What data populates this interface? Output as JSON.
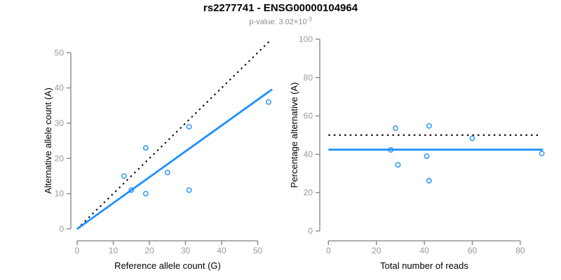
{
  "header": {
    "title": "rs2277741 - ENSG00000104964",
    "subtitle_base": "p-value: 3.02×10",
    "subtitle_exponent": "-3"
  },
  "colors": {
    "accent_blue": "#1E90FF",
    "dotted_black": "#000000",
    "axis_gray": "#808080",
    "tick_label_gray": "#999999",
    "subtitle_gray": "#8C8C8C"
  },
  "chart_data": [
    {
      "type": "scatter",
      "title": "",
      "xlabel": "Reference allele count (G)",
      "ylabel": "Alternative allele count (A)",
      "xlim": [
        0,
        55
      ],
      "ylim": [
        0,
        52
      ],
      "xticks": [
        0,
        10,
        20,
        30,
        40,
        50
      ],
      "yticks": [
        0,
        10,
        20,
        30,
        40,
        50
      ],
      "grid": false,
      "legend": "none",
      "marker": "open-circle",
      "points": [
        [
          13,
          15
        ],
        [
          15,
          11
        ],
        [
          19,
          10
        ],
        [
          19,
          23
        ],
        [
          25,
          16
        ],
        [
          31,
          11
        ],
        [
          31,
          29
        ],
        [
          53,
          36
        ]
      ],
      "lines": [
        {
          "name": "identity-line",
          "style": "dotted",
          "color": "black",
          "from": [
            0,
            0
          ],
          "to": [
            53.5,
            53.5
          ]
        },
        {
          "name": "regression-line",
          "style": "solid",
          "color": "blue",
          "from": [
            0,
            0
          ],
          "to": [
            54,
            39.6
          ]
        }
      ]
    },
    {
      "type": "scatter",
      "title": "",
      "xlabel": "Total number of reads",
      "ylabel": "Percentage alternative (A)",
      "xlim": [
        0,
        92
      ],
      "ylim": [
        0,
        100
      ],
      "xticks": [
        0,
        20,
        40,
        60,
        80
      ],
      "yticks": [
        0,
        20,
        40,
        60,
        80,
        100
      ],
      "grid": false,
      "legend": "none",
      "marker": "open-circle",
      "points": [
        [
          26,
          42.3
        ],
        [
          28,
          53.6
        ],
        [
          29,
          34.5
        ],
        [
          41,
          39
        ],
        [
          42,
          54.8
        ],
        [
          42,
          26.2
        ],
        [
          60,
          48.3
        ],
        [
          89,
          40.4
        ]
      ],
      "lines": [
        {
          "name": "expected-50pct-line",
          "style": "dotted",
          "color": "black",
          "from": [
            0,
            50
          ],
          "to": [
            88,
            50
          ]
        },
        {
          "name": "mean-percentage-line",
          "style": "solid",
          "color": "blue",
          "from": [
            0,
            42.4
          ],
          "to": [
            89.5,
            42.4
          ]
        }
      ]
    }
  ]
}
